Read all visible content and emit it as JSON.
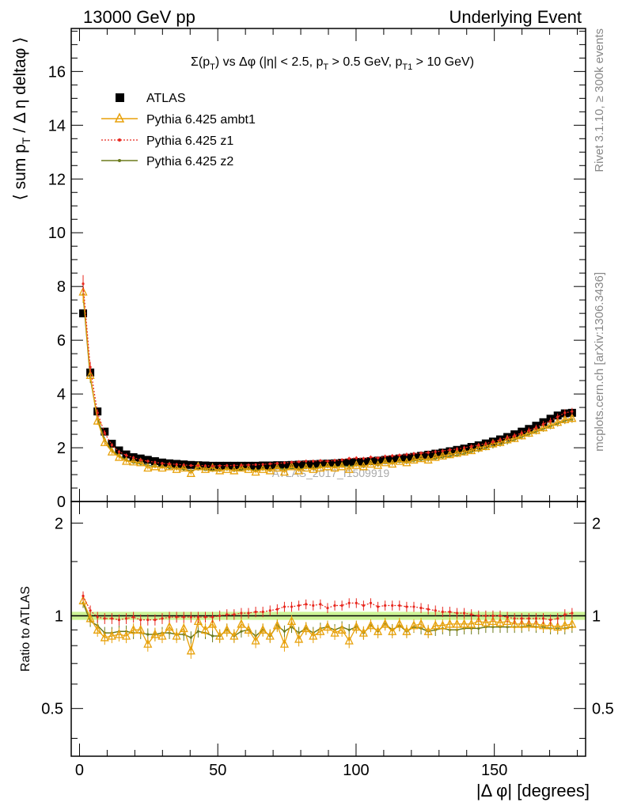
{
  "header": {
    "left": "13000 GeV pp",
    "right": "Underlying Event"
  },
  "side_labels": {
    "rivet": "Rivet 3.1.10, ≥ 300k events",
    "mcplots": "mcplots.cern.ch [arXiv:1306.3436]"
  },
  "watermark": "ATLAS_2017_I1509919",
  "chart_data": [
    {
      "type": "scatter",
      "panel": "main",
      "title_parts": {
        "a": "Σ(p",
        "a_sub": "T",
        "b": ") vs Δφ (|η| < 2.5, p",
        "b_sub": "T",
        "c": " > 0.5 GeV, p",
        "c_sub": "T1",
        "d": " > 10 GeV)"
      },
      "ylabel_parts": {
        "a": "⟨ sum p",
        "a_sub": "T",
        "b": " / Δ η deltaφ ⟩"
      },
      "xlim": [
        -3,
        183
      ],
      "ylim": [
        0,
        17.6
      ],
      "yticks": [
        0,
        2,
        4,
        6,
        8,
        10,
        12,
        14,
        16
      ],
      "ytick_labels": [
        "0",
        "2",
        "4",
        "6",
        "8",
        "10",
        "12",
        "14",
        "16"
      ],
      "legend": {
        "position": "top-left",
        "entries": [
          "ATLAS",
          "Pythia 6.425 ambt1",
          "Pythia 6.425 z1",
          "Pythia 6.425 z2"
        ]
      },
      "series": [
        {
          "name": "ATLAS",
          "color": "#000000",
          "marker": "square",
          "values": [
            7.0,
            4.8,
            3.35,
            2.6,
            2.15,
            1.9,
            1.75,
            1.65,
            1.6,
            1.55,
            1.5,
            1.45,
            1.42,
            1.4,
            1.38,
            1.36,
            1.35,
            1.34,
            1.33,
            1.33,
            1.33,
            1.33,
            1.33,
            1.33,
            1.33,
            1.34,
            1.34,
            1.35,
            1.35,
            1.36,
            1.37,
            1.38,
            1.39,
            1.4,
            1.41,
            1.42,
            1.44,
            1.45,
            1.47,
            1.48,
            1.5,
            1.52,
            1.55,
            1.57,
            1.6,
            1.63,
            1.66,
            1.7,
            1.74,
            1.78,
            1.82,
            1.87,
            1.92,
            1.97,
            2.03,
            2.09,
            2.16,
            2.23,
            2.31,
            2.4,
            2.5,
            2.6,
            2.7,
            2.82,
            2.95,
            3.08,
            3.2,
            3.28,
            3.3
          ]
        },
        {
          "name": "Pythia 6.425 ambt1",
          "color": "#e8a10a",
          "marker": "triangle",
          "values": [
            7.8,
            4.7,
            3.0,
            2.2,
            1.85,
            1.65,
            1.5,
            1.48,
            1.45,
            1.25,
            1.3,
            1.25,
            1.3,
            1.2,
            1.25,
            1.05,
            1.3,
            1.2,
            1.25,
            1.15,
            1.2,
            1.15,
            1.25,
            1.2,
            1.1,
            1.2,
            1.15,
            1.25,
            1.1,
            1.3,
            1.15,
            1.25,
            1.2,
            1.25,
            1.3,
            1.25,
            1.3,
            1.2,
            1.35,
            1.3,
            1.4,
            1.35,
            1.45,
            1.4,
            1.5,
            1.45,
            1.55,
            1.6,
            1.55,
            1.65,
            1.7,
            1.75,
            1.8,
            1.85,
            1.9,
            2.0,
            2.05,
            2.15,
            2.2,
            2.3,
            2.35,
            2.45,
            2.55,
            2.65,
            2.75,
            2.85,
            2.95,
            3.05,
            3.1
          ]
        },
        {
          "name": "Pythia 6.425 z1",
          "color": "#e8281f",
          "marker": "dot",
          "values": [
            8.1,
            5.0,
            3.3,
            2.55,
            2.1,
            1.85,
            1.72,
            1.63,
            1.55,
            1.5,
            1.46,
            1.42,
            1.4,
            1.38,
            1.36,
            1.34,
            1.34,
            1.33,
            1.32,
            1.33,
            1.34,
            1.34,
            1.35,
            1.36,
            1.37,
            1.38,
            1.4,
            1.42,
            1.44,
            1.46,
            1.48,
            1.5,
            1.5,
            1.52,
            1.5,
            1.53,
            1.55,
            1.6,
            1.62,
            1.6,
            1.65,
            1.62,
            1.68,
            1.7,
            1.72,
            1.75,
            1.78,
            1.8,
            1.82,
            1.85,
            1.88,
            1.92,
            1.95,
            2.0,
            2.05,
            2.1,
            2.15,
            2.22,
            2.3,
            2.38,
            2.45,
            2.55,
            2.65,
            2.75,
            2.88,
            3.0,
            3.15,
            3.3,
            3.35
          ]
        },
        {
          "name": "Pythia 6.425 z2",
          "color": "#6b7a1b",
          "marker": "dot",
          "values": [
            7.7,
            4.6,
            3.1,
            2.3,
            1.9,
            1.7,
            1.55,
            1.45,
            1.4,
            1.35,
            1.3,
            1.28,
            1.25,
            1.22,
            1.2,
            1.15,
            1.2,
            1.18,
            1.15,
            1.15,
            1.2,
            1.15,
            1.18,
            1.2,
            1.15,
            1.2,
            1.15,
            1.25,
            1.2,
            1.25,
            1.2,
            1.25,
            1.22,
            1.28,
            1.3,
            1.28,
            1.32,
            1.3,
            1.35,
            1.3,
            1.4,
            1.35,
            1.45,
            1.42,
            1.48,
            1.45,
            1.52,
            1.55,
            1.55,
            1.6,
            1.65,
            1.68,
            1.72,
            1.78,
            1.85,
            1.9,
            1.98,
            2.05,
            2.12,
            2.2,
            2.3,
            2.4,
            2.5,
            2.6,
            2.7,
            2.8,
            2.9,
            3.0,
            3.05
          ]
        }
      ]
    },
    {
      "type": "line",
      "panel": "ratio",
      "ylabel": "Ratio to ATLAS",
      "xlabel": "|Δ φ| [degrees]",
      "xlim": [
        -3,
        183
      ],
      "ylim": [
        0.35,
        2.35
      ],
      "yticks": [
        0.5,
        1,
        2
      ],
      "ytick_labels": [
        "0.5",
        "1",
        "2"
      ],
      "xticks": [
        0,
        50,
        100,
        150
      ],
      "xtick_labels": [
        "0",
        "50",
        "100",
        "150"
      ],
      "reference_band": {
        "low": 0.97,
        "high": 1.03,
        "color": "#bff07a"
      },
      "series": [
        {
          "name": "Pythia 6.425 ambt1",
          "color": "#e8a10a",
          "values": [
            1.12,
            0.98,
            0.9,
            0.85,
            0.86,
            0.87,
            0.86,
            0.9,
            0.9,
            0.81,
            0.87,
            0.86,
            0.92,
            0.86,
            0.91,
            0.77,
            0.96,
            0.9,
            0.94,
            0.86,
            0.9,
            0.86,
            0.94,
            0.9,
            0.83,
            0.9,
            0.86,
            0.93,
            0.81,
            0.96,
            0.84,
            0.91,
            0.86,
            0.89,
            0.92,
            0.88,
            0.9,
            0.83,
            0.92,
            0.88,
            0.93,
            0.89,
            0.94,
            0.89,
            0.94,
            0.89,
            0.93,
            0.94,
            0.89,
            0.93,
            0.93,
            0.94,
            0.94,
            0.94,
            0.94,
            0.96,
            0.95,
            0.96,
            0.95,
            0.96,
            0.94,
            0.94,
            0.94,
            0.94,
            0.93,
            0.93,
            0.92,
            0.93,
            0.94
          ]
        },
        {
          "name": "Pythia 6.425 z1",
          "color": "#e8281f",
          "values": [
            1.16,
            1.04,
            0.99,
            0.98,
            0.98,
            0.97,
            0.98,
            0.99,
            0.97,
            0.97,
            0.97,
            0.98,
            0.99,
            0.99,
            0.99,
            0.99,
            0.99,
            0.99,
            0.99,
            1.0,
            1.01,
            1.01,
            1.02,
            1.02,
            1.03,
            1.03,
            1.04,
            1.05,
            1.07,
            1.07,
            1.08,
            1.09,
            1.08,
            1.09,
            1.06,
            1.08,
            1.08,
            1.1,
            1.1,
            1.08,
            1.1,
            1.07,
            1.08,
            1.08,
            1.08,
            1.07,
            1.07,
            1.06,
            1.05,
            1.04,
            1.03,
            1.03,
            1.02,
            1.02,
            1.01,
            1.0,
            1.0,
            1.0,
            1.0,
            0.99,
            0.98,
            0.98,
            0.98,
            0.98,
            0.98,
            0.97,
            0.98,
            1.01,
            1.02
          ]
        },
        {
          "name": "Pythia 6.425 z2",
          "color": "#6b7a1b",
          "values": [
            1.1,
            0.96,
            0.93,
            0.88,
            0.88,
            0.89,
            0.89,
            0.88,
            0.88,
            0.87,
            0.87,
            0.88,
            0.88,
            0.87,
            0.87,
            0.85,
            0.89,
            0.88,
            0.86,
            0.86,
            0.9,
            0.86,
            0.89,
            0.9,
            0.86,
            0.9,
            0.86,
            0.93,
            0.89,
            0.92,
            0.88,
            0.91,
            0.88,
            0.91,
            0.92,
            0.9,
            0.92,
            0.9,
            0.92,
            0.88,
            0.93,
            0.89,
            0.94,
            0.9,
            0.93,
            0.89,
            0.92,
            0.91,
            0.89,
            0.9,
            0.91,
            0.9,
            0.9,
            0.91,
            0.91,
            0.91,
            0.92,
            0.92,
            0.92,
            0.92,
            0.92,
            0.92,
            0.93,
            0.92,
            0.92,
            0.91,
            0.91,
            0.91,
            0.92
          ]
        }
      ]
    }
  ]
}
